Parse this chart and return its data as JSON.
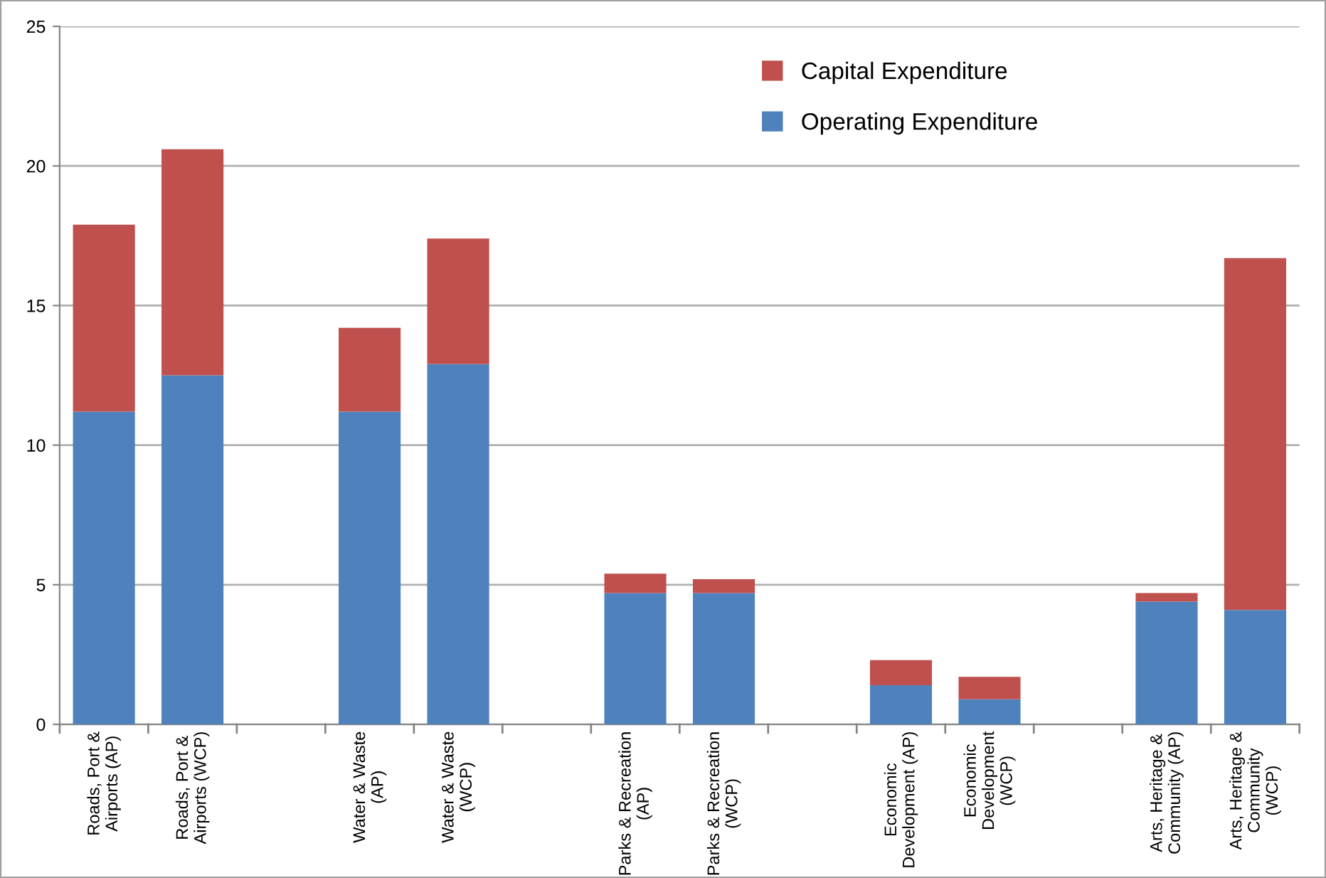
{
  "chart_data": {
    "type": "bar",
    "stacked": true,
    "categories": [
      "Roads, Port &\nAirports (AP)",
      "Roads, Port &\nAirports (WCP)",
      null,
      "Water & Waste\n(AP)",
      "Water & Waste\n(WCP)",
      null,
      "Parks & Recreation\n(AP)",
      "Parks & Recreation\n(WCP)",
      null,
      "Economic\nDevelopment (AP)",
      "Economic\nDevelopment\n(WCP)",
      null,
      "Arts, Heritage &\nCommunity (AP)",
      "Arts, Heritage &\nCommunity\n(WCP)"
    ],
    "series": [
      {
        "name": "Operating Expenditure",
        "color": "#4f81bd",
        "values": [
          11.2,
          12.5,
          null,
          11.2,
          12.9,
          null,
          4.7,
          4.7,
          null,
          1.4,
          0.9,
          null,
          4.4,
          4.1
        ]
      },
      {
        "name": "Capital Expenditure",
        "color": "#c0504d",
        "values": [
          6.7,
          8.1,
          null,
          3.0,
          4.5,
          null,
          0.7,
          0.5,
          null,
          0.9,
          0.8,
          null,
          0.3,
          12.6
        ]
      }
    ],
    "ylim": [
      0,
      25
    ],
    "yticks": [
      0,
      5,
      10,
      15,
      20,
      25
    ],
    "grid": "y",
    "legend": "top right"
  }
}
